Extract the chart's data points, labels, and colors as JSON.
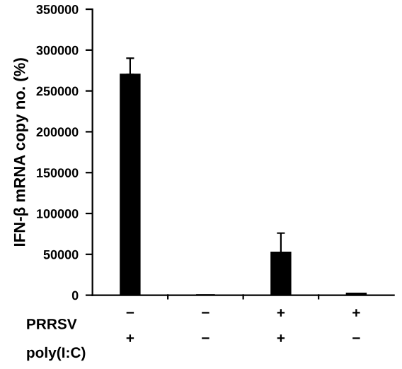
{
  "chart_data": {
    "type": "bar",
    "ylabel": "IFN-β mRNA copy no. (%)",
    "categories": [
      "−\n+",
      "−\n−",
      "+\n+",
      "+\n−"
    ],
    "values": [
      270000,
      0,
      52000,
      2000
    ],
    "errors": [
      20000,
      null,
      24000,
      null
    ],
    "color": "#000000",
    "ylim": [
      0,
      350000
    ],
    "yticks": [
      0,
      50000,
      100000,
      150000,
      200000,
      250000,
      300000,
      350000
    ],
    "annotations": [
      "PRRSV",
      "poly(I:C)"
    ],
    "grid": false,
    "legend": false
  }
}
